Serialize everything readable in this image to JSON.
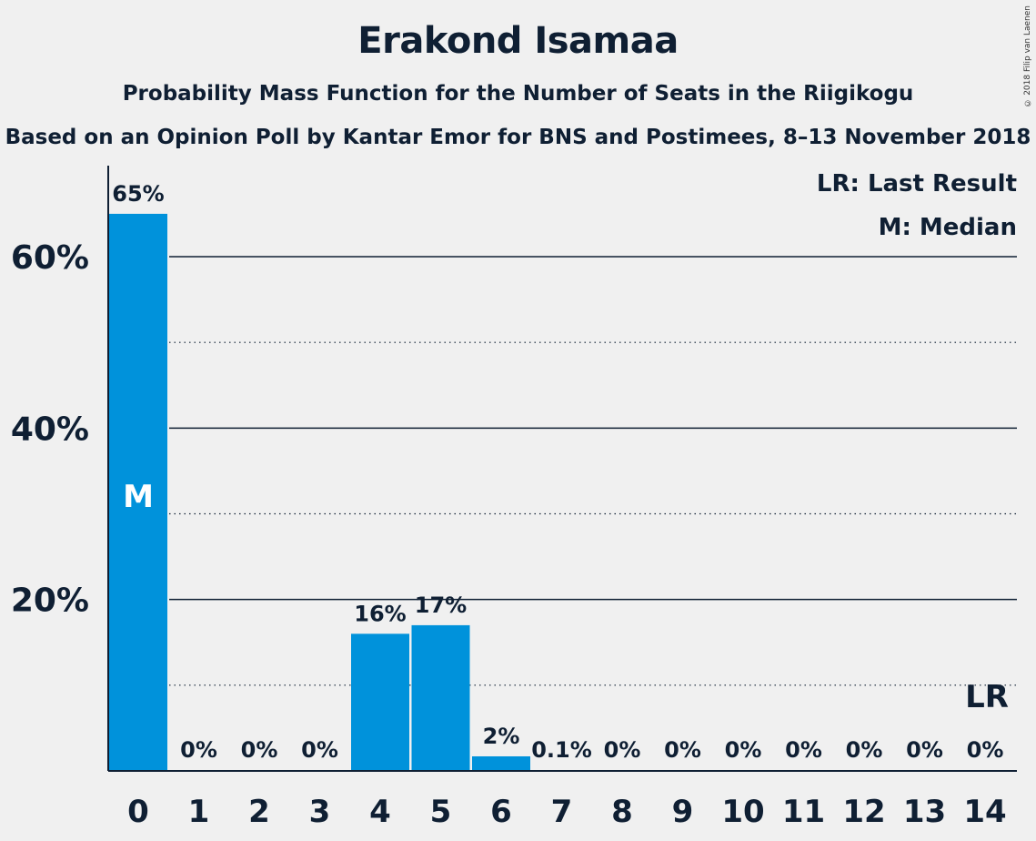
{
  "copyright": "© 2018 Filip van Laenen",
  "chart_data": {
    "type": "bar",
    "title": "Erakond Isamaa",
    "subtitle": "Probability Mass Function for the Number of Seats in the Riigikogu",
    "subtitle2": "Based on an Opinion Poll by Kantar Emor for BNS and Postimees, 8–13 November 2018",
    "categories": [
      "0",
      "1",
      "2",
      "3",
      "4",
      "5",
      "6",
      "7",
      "8",
      "9",
      "10",
      "11",
      "12",
      "13",
      "14"
    ],
    "values": [
      65,
      0,
      0,
      0,
      16,
      17,
      1.7,
      0.1,
      0,
      0,
      0,
      0,
      0,
      0,
      0
    ],
    "value_labels": [
      "65%",
      "0%",
      "0%",
      "0%",
      "16%",
      "17%",
      "2%",
      "0.1%",
      "0%",
      "0%",
      "0%",
      "0%",
      "0%",
      "0%",
      "0%"
    ],
    "ylim": [
      0,
      70
    ],
    "y_major_ticks": [
      20,
      40,
      60
    ],
    "y_minor_ticks": [
      10,
      30,
      50
    ],
    "y_tick_labels": [
      "20%",
      "40%",
      "60%"
    ],
    "bar_color": "#0092db",
    "median_category": "0",
    "median_marker": "M",
    "last_result_category": "14",
    "last_result_marker": "LR",
    "legend": [
      "LR: Last Result",
      "M: Median"
    ],
    "legend_position": "top-right"
  }
}
